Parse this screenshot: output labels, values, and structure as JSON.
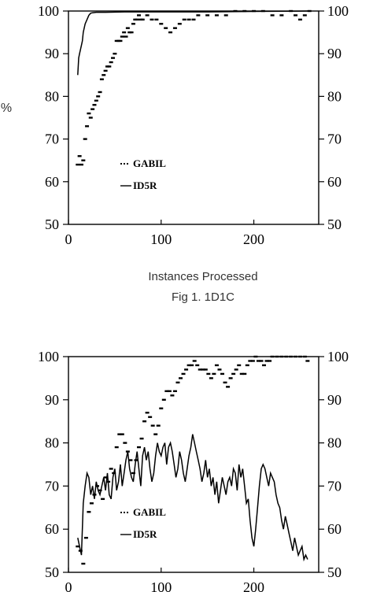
{
  "chart_data": [
    {
      "type": "line",
      "title": "",
      "ylabel": "%",
      "xlabel": "Instances Processed",
      "caption": "Fig 1. 1D1C",
      "xlim": [
        0,
        270
      ],
      "ylim": [
        50,
        100
      ],
      "x_ticks": [
        0,
        100,
        200
      ],
      "y_ticks": [
        50,
        60,
        70,
        80,
        90,
        100
      ],
      "grid": false,
      "legend_position": "inside-left",
      "series": [
        {
          "name": "GABIL",
          "style": "dotted",
          "x": [
            10,
            12,
            14,
            16,
            18,
            20,
            22,
            24,
            26,
            28,
            30,
            32,
            34,
            36,
            38,
            40,
            42,
            44,
            46,
            48,
            50,
            52,
            54,
            56,
            58,
            60,
            62,
            64,
            66,
            68,
            70,
            72,
            74,
            76,
            78,
            80,
            85,
            90,
            95,
            100,
            105,
            110,
            115,
            120,
            125,
            130,
            135,
            140,
            150,
            160,
            170,
            180,
            190,
            200,
            210,
            220,
            230,
            240,
            245,
            250,
            255,
            260
          ],
          "y": [
            64,
            66,
            64,
            65,
            70,
            73,
            76,
            75,
            77,
            78,
            79,
            80,
            81,
            84,
            85,
            86,
            87,
            87,
            88,
            89,
            90,
            93,
            93,
            93,
            94,
            95,
            94,
            96,
            95,
            95,
            97,
            98,
            98,
            99,
            98,
            98,
            99,
            98,
            98,
            97,
            96,
            95,
            96,
            97,
            98,
            98,
            98,
            99,
            99,
            99,
            99,
            100,
            100,
            100,
            100,
            99,
            99,
            100,
            99,
            98,
            99,
            100
          ]
        },
        {
          "name": "ID5R",
          "style": "solid",
          "x": [
            10,
            11,
            12,
            13,
            14,
            15,
            16,
            17,
            18,
            20,
            22,
            24,
            26,
            30,
            40,
            60,
            100,
            150,
            200,
            260
          ],
          "y": [
            85,
            89,
            90,
            91,
            92,
            93,
            95,
            96,
            97,
            98,
            99,
            99.5,
            99.6,
            99.7,
            99.7,
            99.8,
            99.8,
            99.8,
            99.9,
            100
          ]
        }
      ]
    },
    {
      "type": "line",
      "title": "",
      "xlim": [
        0,
        270
      ],
      "ylim": [
        50,
        100
      ],
      "x_ticks": [
        0,
        100,
        200
      ],
      "y_ticks": [
        50,
        60,
        70,
        80,
        90,
        100
      ],
      "grid": false,
      "legend_position": "inside-left",
      "series": [
        {
          "name": "GABIL",
          "style": "dotted",
          "x": [
            10,
            13,
            16,
            19,
            22,
            25,
            28,
            31,
            34,
            37,
            40,
            43,
            46,
            49,
            52,
            55,
            58,
            61,
            64,
            67,
            70,
            73,
            76,
            79,
            82,
            85,
            88,
            91,
            94,
            97,
            100,
            103,
            106,
            109,
            112,
            115,
            118,
            121,
            124,
            127,
            130,
            133,
            136,
            139,
            142,
            145,
            148,
            151,
            154,
            157,
            160,
            163,
            166,
            169,
            172,
            175,
            178,
            181,
            184,
            187,
            190,
            193,
            196,
            199,
            202,
            205,
            208,
            211,
            214,
            217,
            220,
            225,
            230,
            235,
            240,
            245,
            250,
            255,
            258
          ],
          "y": [
            56,
            55,
            52,
            58,
            64,
            66,
            68,
            70,
            69,
            67,
            72,
            71,
            74,
            73,
            79,
            82,
            82,
            80,
            78,
            76,
            73,
            76,
            79,
            81,
            85,
            87,
            86,
            84,
            82,
            84,
            88,
            90,
            92,
            92,
            91,
            92,
            94,
            95,
            96,
            97,
            98,
            98,
            99,
            98,
            97,
            97,
            97,
            96,
            95,
            96,
            98,
            97,
            96,
            94,
            93,
            95,
            96,
            97,
            98,
            96,
            96,
            98,
            99,
            99,
            100,
            99,
            99,
            98,
            99,
            99,
            100,
            100,
            100,
            100,
            100,
            100,
            100,
            100,
            99
          ]
        },
        {
          "name": "ID5R",
          "style": "solid",
          "x": [
            10,
            12,
            14,
            16,
            18,
            20,
            22,
            24,
            26,
            28,
            30,
            32,
            34,
            36,
            38,
            40,
            42,
            44,
            46,
            48,
            50,
            52,
            54,
            56,
            58,
            60,
            62,
            64,
            66,
            68,
            70,
            72,
            74,
            76,
            78,
            80,
            82,
            84,
            86,
            88,
            90,
            92,
            94,
            96,
            98,
            100,
            102,
            104,
            106,
            108,
            110,
            112,
            114,
            116,
            118,
            120,
            122,
            124,
            126,
            128,
            130,
            132,
            134,
            136,
            138,
            140,
            142,
            144,
            146,
            148,
            150,
            152,
            154,
            156,
            158,
            160,
            162,
            164,
            166,
            168,
            170,
            172,
            174,
            176,
            178,
            180,
            182,
            184,
            186,
            188,
            190,
            192,
            194,
            196,
            198,
            200,
            202,
            204,
            206,
            208,
            210,
            212,
            214,
            216,
            218,
            220,
            222,
            224,
            226,
            228,
            230,
            232,
            234,
            236,
            238,
            240,
            242,
            244,
            246,
            248,
            250,
            252,
            254,
            256,
            258
          ],
          "y": [
            58,
            56,
            54,
            66,
            70,
            73,
            72,
            68,
            70,
            67,
            71,
            69,
            68,
            70,
            72,
            69,
            73,
            68,
            67,
            72,
            74,
            69,
            71,
            75,
            70,
            73,
            76,
            78,
            74,
            72,
            71,
            75,
            78,
            74,
            70,
            77,
            79,
            76,
            78,
            74,
            71,
            73,
            77,
            80,
            78,
            77,
            79,
            80,
            75,
            79,
            80,
            78,
            75,
            72,
            74,
            78,
            76,
            73,
            71,
            74,
            77,
            79,
            82,
            80,
            78,
            76,
            74,
            71,
            73,
            76,
            72,
            74,
            70,
            72,
            68,
            71,
            66,
            69,
            72,
            70,
            68,
            71,
            72,
            70,
            74,
            73,
            69,
            75,
            72,
            74,
            70,
            66,
            67,
            62,
            58,
            56,
            60,
            65,
            70,
            74,
            75,
            74,
            72,
            70,
            73,
            72,
            71,
            68,
            66,
            65,
            62,
            60,
            63,
            61,
            59,
            57,
            55,
            58,
            56,
            54,
            55,
            56,
            53,
            54,
            53
          ]
        }
      ]
    }
  ]
}
